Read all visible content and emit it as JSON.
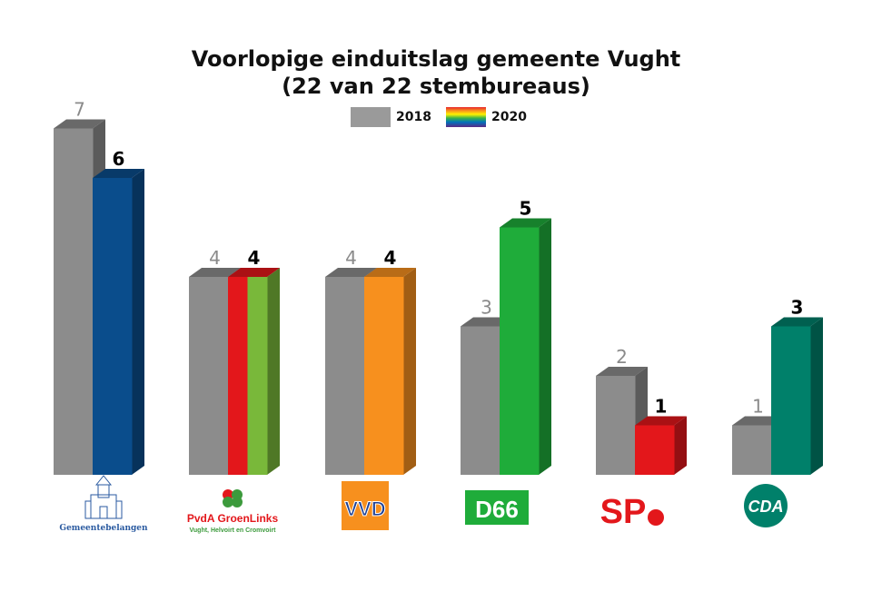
{
  "title": "Voorlopige einduitslag gemeente Vught",
  "subtitle": "(22 van 22 stembureaus)",
  "legend": {
    "old": "2018",
    "new": "2020"
  },
  "chart_data": {
    "type": "bar",
    "title": "Voorlopige einduitslag gemeente Vught",
    "subtitle": "(22 van 22 stembureaus)",
    "categories": [
      "Gemeentebelangen",
      "PvdA GroenLinks",
      "VVD",
      "D66",
      "SP",
      "CDA"
    ],
    "series": [
      {
        "name": "2018",
        "values": [
          7,
          4,
          4,
          3,
          2,
          1
        ],
        "color": "#8c8c8c"
      },
      {
        "name": "2020",
        "values": [
          6,
          4,
          4,
          5,
          1,
          3
        ],
        "colors": [
          "#0a4d8c",
          [
            "#e3171b",
            "#79b83a"
          ],
          "#f7901e",
          "#1fac3a",
          "#e3171b",
          "#00806a"
        ]
      }
    ],
    "ylim": [
      0,
      7
    ],
    "grid": false,
    "legend_position": "top-center"
  },
  "logos": [
    {
      "name": "Gemeentebelangen",
      "text": "Gemeentebelangen",
      "icon": "castle-icon",
      "color": "#2a5aa0"
    },
    {
      "name": "PvdA GroenLinks",
      "text": "PvdA GroenLinks",
      "subtext": "Vught, Helvoirt en Cromvoirt",
      "icon": "clover-icon",
      "color": "#e3171b",
      "accent": "#3c9a3c"
    },
    {
      "name": "VVD",
      "text": "VVD",
      "color": "#f7901e",
      "accent": "#1c3f94"
    },
    {
      "name": "D66",
      "text": "D66",
      "color": "#1fac3a"
    },
    {
      "name": "SP",
      "text": "SP",
      "icon": "tomato-icon",
      "color": "#e3171b"
    },
    {
      "name": "CDA",
      "text": "CDA",
      "color": "#00806a"
    }
  ]
}
